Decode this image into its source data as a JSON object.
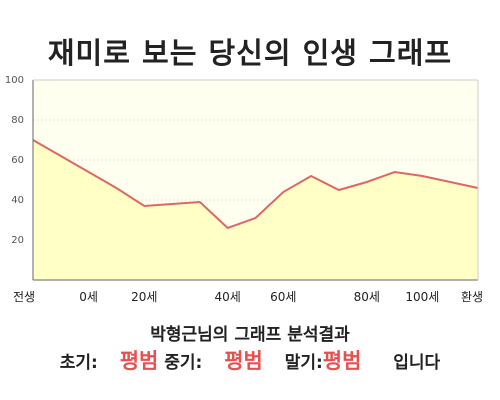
{
  "title": "재미로 보는 당신의 인생 그래프",
  "summary": "박형근님의 그래프 분석결과",
  "phases": {
    "early_label": "초기:",
    "early_value": "평범",
    "mid_label": "중기:",
    "mid_value": "평범",
    "late_label": "말기:",
    "late_value": "평범",
    "ending": "입니다"
  },
  "colors": {
    "line": "#e06666",
    "fill": "#ffffc6",
    "background": "#fffff0"
  },
  "chart_data": {
    "type": "area",
    "title": "",
    "xlabel": "",
    "ylabel": "",
    "ylim": [
      0,
      100
    ],
    "yticks": [
      20,
      40,
      60,
      80,
      100
    ],
    "grid": true,
    "xtick_labels": [
      "전생",
      "0세",
      "20세",
      "40세",
      "60세",
      "80세",
      "100세",
      "환생"
    ],
    "x": [
      "전생",
      "",
      "0세",
      "",
      "20세",
      "",
      "",
      "40세",
      "",
      "60세",
      "",
      "",
      "80세",
      "",
      "100세",
      "",
      "환생"
    ],
    "values": [
      70,
      62,
      54,
      46,
      37,
      38,
      39,
      26,
      31,
      44,
      52,
      45,
      49,
      54,
      52,
      49,
      46
    ]
  }
}
